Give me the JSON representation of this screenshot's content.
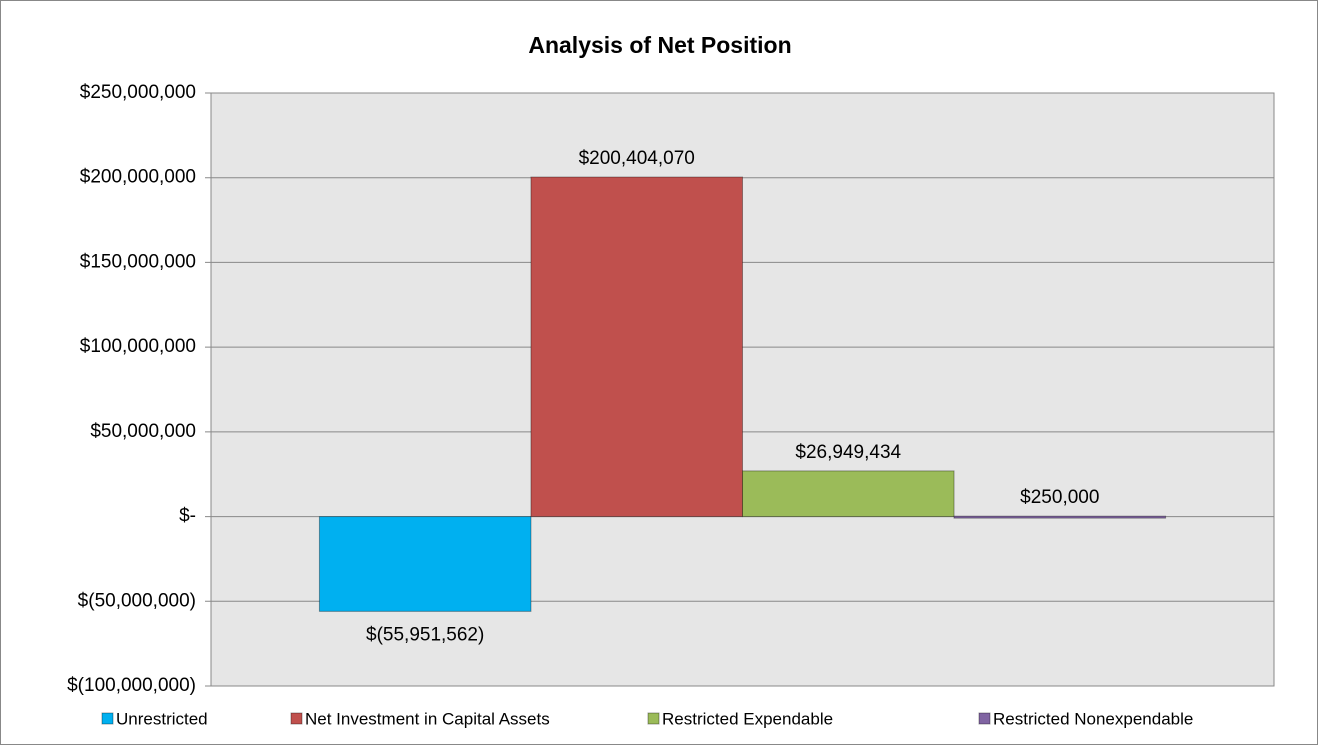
{
  "chart_data": {
    "type": "bar",
    "title": "Analysis of Net Position",
    "categories": [
      null
    ],
    "series": [
      {
        "name": "Unrestricted",
        "color": "#00b0f0",
        "values": [
          -55951562
        ],
        "value_labels": [
          "$(55,951,562)"
        ]
      },
      {
        "name": "Net Investment in Capital Assets",
        "color": "#c0504d",
        "values": [
          200404070
        ],
        "value_labels": [
          "$200,404,070"
        ]
      },
      {
        "name": "Restricted Expendable",
        "color": "#9bbb59",
        "values": [
          26949434
        ],
        "value_labels": [
          "$26,949,434"
        ]
      },
      {
        "name": "Restricted Nonexpendable",
        "color": "#8064a2",
        "values": [
          250000
        ],
        "value_labels": [
          "$250,000"
        ]
      }
    ],
    "ylim": [
      -100000000,
      250000000
    ],
    "yticks": [
      {
        "value": -100000000,
        "label": "$(100,000,000)"
      },
      {
        "value": -50000000,
        "label": "$(50,000,000)"
      },
      {
        "value": 0,
        "label": "$-"
      },
      {
        "value": 50000000,
        "label": "$50,000,000"
      },
      {
        "value": 100000000,
        "label": "$100,000,000"
      },
      {
        "value": 150000000,
        "label": "$150,000,000"
      },
      {
        "value": 200000000,
        "label": "$200,000,000"
      },
      {
        "value": 250000000,
        "label": "$250,000,000"
      }
    ],
    "grid": true,
    "legend": "bottom"
  }
}
